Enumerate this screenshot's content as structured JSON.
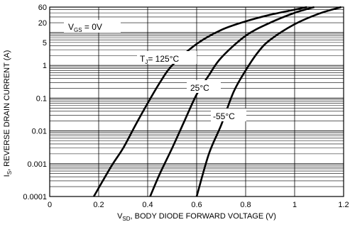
{
  "chart_data": {
    "type": "line",
    "y_scale": "log",
    "xlim": [
      0,
      1.2
    ],
    "ylim": [
      0.0001,
      60
    ],
    "x_ticks": [
      0,
      0.2,
      0.4,
      0.6,
      0.8,
      1,
      1.2
    ],
    "x_tick_labels": [
      "0",
      "0.2",
      "0.4",
      "0.6",
      "0.8",
      "1",
      "1.2"
    ],
    "y_ticks": [
      0.0001,
      0.001,
      0.01,
      0.1,
      1,
      5,
      20,
      60
    ],
    "y_tick_labels": [
      "0.0001",
      "0.001",
      "0.01",
      "0.1",
      "1",
      "5",
      "20",
      "60"
    ],
    "xlabel": {
      "main": "V",
      "sub": "SD",
      "rest": ", BODY DIODE FORWARD VOLTAGE (V)"
    },
    "ylabel": {
      "main": "I",
      "sub": "S",
      "rest": ", REVERSE DRAIN CURRENT (A)"
    },
    "annotations": {
      "vgs": {
        "pre": "V",
        "sub": "GS",
        "post": " = 0V"
      },
      "series_labels": [
        {
          "pre": "T",
          "sub": "J",
          "post": "= 125°C"
        },
        {
          "pre": "",
          "sub": "",
          "post": "25°C"
        },
        {
          "pre": "",
          "sub": "",
          "post": "-55°C"
        }
      ]
    },
    "grid": true,
    "series": [
      {
        "x": [
          0.18,
          0.25,
          0.3,
          0.35,
          0.4,
          0.45,
          0.5,
          0.6,
          0.7,
          0.8,
          0.9,
          1.0,
          1.05
        ],
        "y": [
          0.0001,
          0.0008,
          0.003,
          0.015,
          0.07,
          0.3,
          1.0,
          4.5,
          12,
          22,
          35,
          50,
          60
        ]
      },
      {
        "x": [
          0.41,
          0.45,
          0.5,
          0.55,
          0.6,
          0.65,
          0.7,
          0.8,
          0.9,
          1.0,
          1.08
        ],
        "y": [
          0.0001,
          0.0005,
          0.003,
          0.02,
          0.13,
          0.5,
          1.7,
          8,
          20,
          40,
          60
        ]
      },
      {
        "x": [
          0.6,
          0.65,
          0.7,
          0.75,
          0.8,
          0.85,
          0.9,
          1.0,
          1.1,
          1.19
        ],
        "y": [
          0.0001,
          0.002,
          0.015,
          0.15,
          0.7,
          2.5,
          6,
          18,
          38,
          60
        ]
      }
    ]
  }
}
